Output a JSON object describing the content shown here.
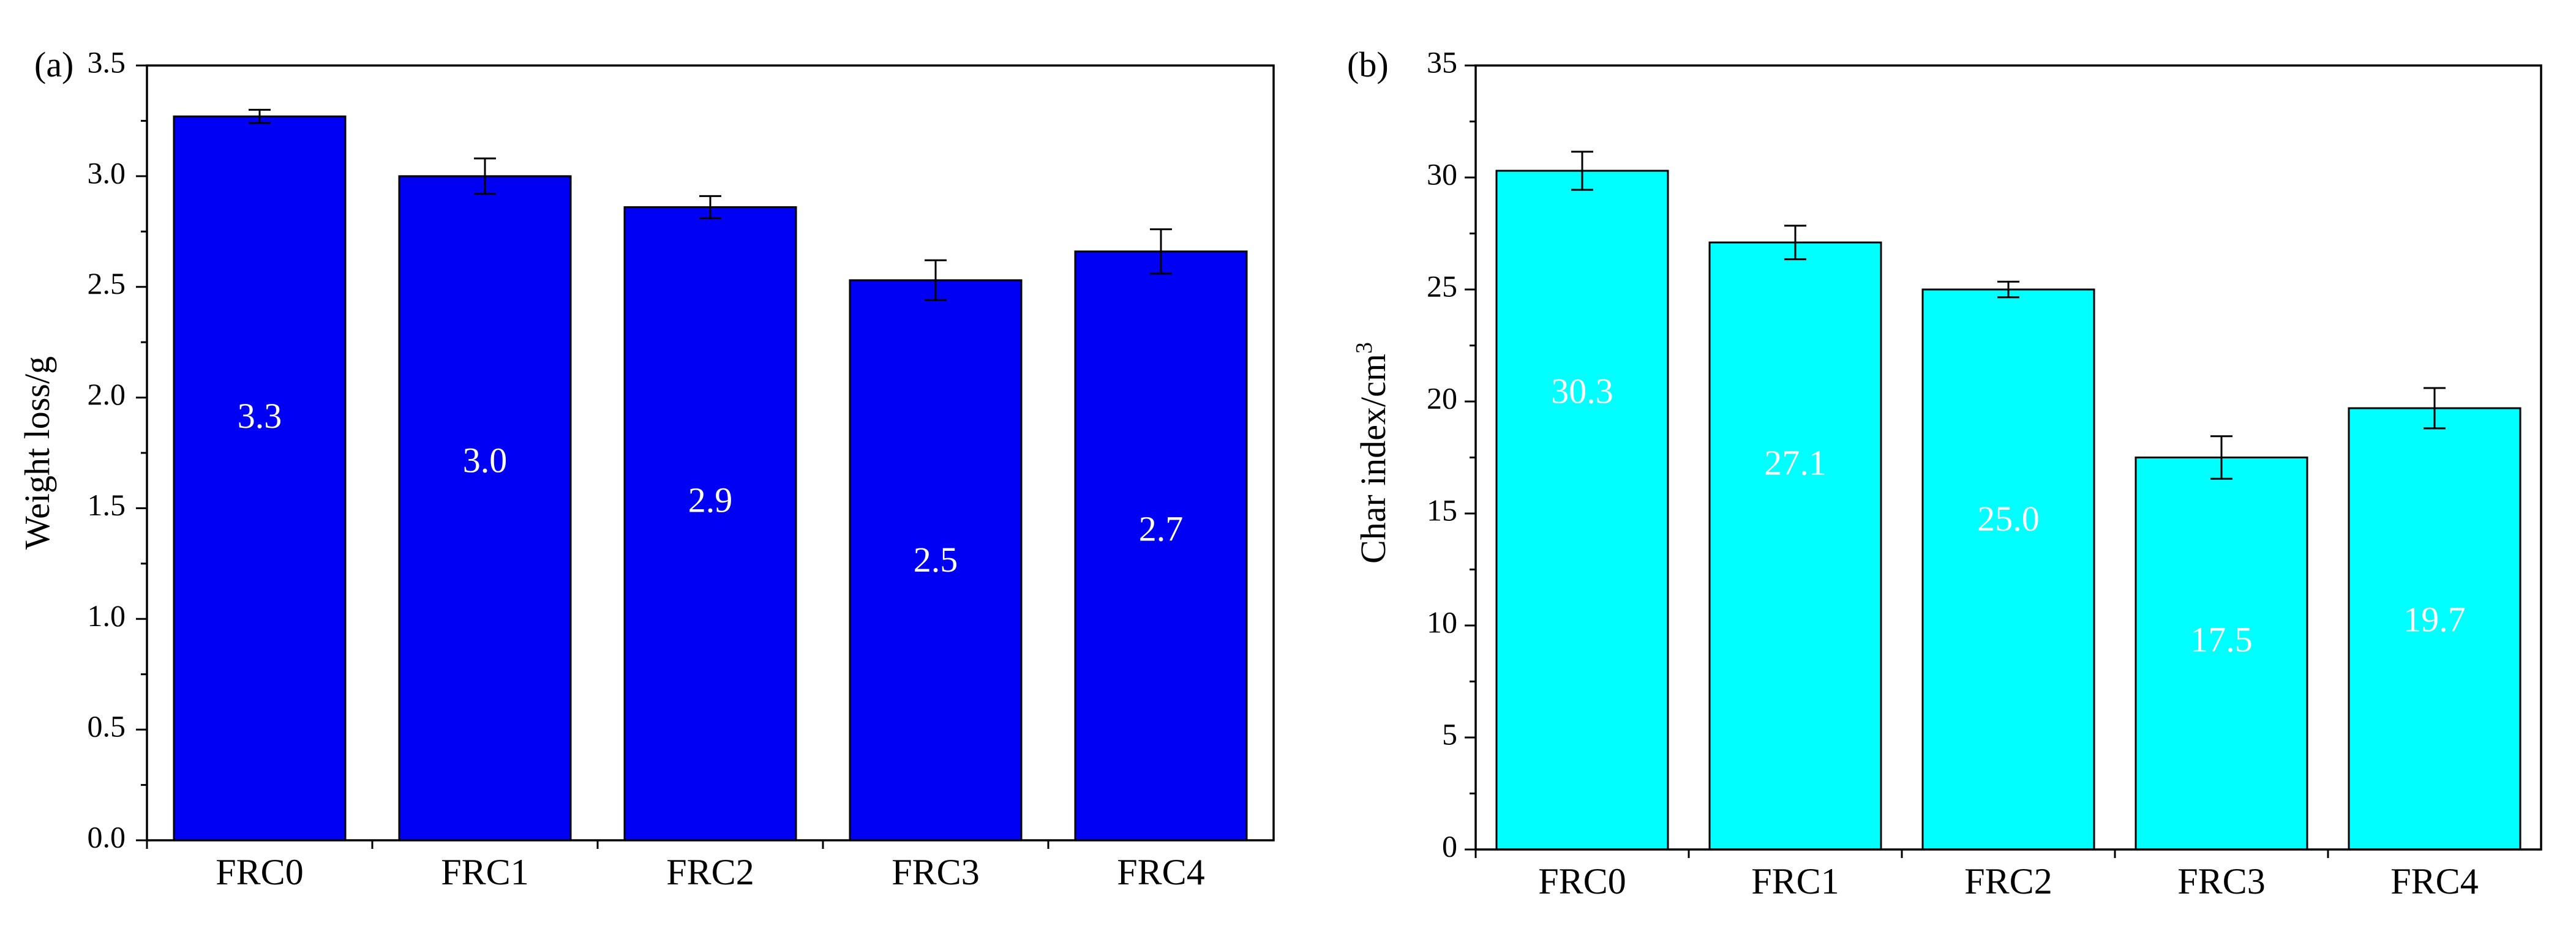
{
  "chart_data": [
    {
      "type": "bar",
      "panel_label": "(a)",
      "title": "",
      "xlabel": "",
      "ylabel": "Weight loss/g",
      "ylim": [
        0,
        3.5
      ],
      "ytick_step": 0.5,
      "ytick_labels": [
        "0.0",
        "0.5",
        "1.0",
        "1.5",
        "2.0",
        "2.5",
        "3.0",
        "3.5"
      ],
      "categories": [
        "FRC0",
        "FRC1",
        "FRC2",
        "FRC3",
        "FRC4"
      ],
      "values": [
        3.27,
        3.0,
        2.86,
        2.53,
        2.66
      ],
      "errors": [
        0.03,
        0.08,
        0.05,
        0.09,
        0.1
      ],
      "data_labels": [
        "3.3",
        "3.0",
        "2.9",
        "2.5",
        "2.7"
      ],
      "label_values": [
        1.9,
        1.7,
        1.52,
        1.25,
        1.39
      ],
      "bar_color": "#0000f5",
      "label_color": "#ffffff",
      "grid": false
    },
    {
      "type": "bar",
      "panel_label": "(b)",
      "title": "",
      "xlabel": "",
      "ylabel": "Char index/cm",
      "ylabel_superscript": "3",
      "ylim": [
        0,
        35
      ],
      "ytick_step": 5,
      "ytick_labels": [
        "0",
        "5",
        "10",
        "15",
        "20",
        "25",
        "30",
        "35"
      ],
      "categories": [
        "FRC0",
        "FRC1",
        "FRC2",
        "FRC3",
        "FRC4"
      ],
      "values": [
        30.3,
        27.1,
        25.0,
        17.5,
        19.7
      ],
      "errors": [
        0.85,
        0.75,
        0.35,
        0.95,
        0.9
      ],
      "data_labels": [
        "30.3",
        "27.1",
        "25.0",
        "17.5",
        "19.7"
      ],
      "label_values": [
        20.3,
        17.1,
        14.6,
        9.2,
        10.1
      ],
      "bar_color": "#00ffff",
      "label_color": "#ffffff",
      "grid": false
    }
  ]
}
